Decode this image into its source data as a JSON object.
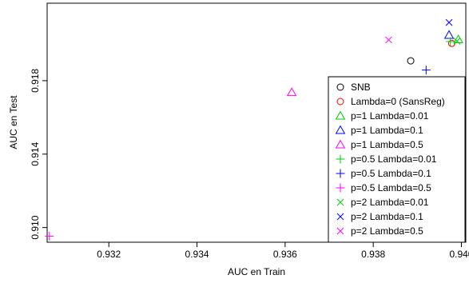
{
  "chart_data": {
    "type": "scatter",
    "xlabel": "AUC en Train",
    "ylabel": "AUC en Test",
    "xlim": [
      0.9306,
      0.9401
    ],
    "ylim": [
      0.9092,
      0.92222
    ],
    "xticks": [
      0.932,
      0.934,
      0.936,
      0.938,
      0.94
    ],
    "xtick_labels": [
      "0.932",
      "0.934",
      "0.936",
      "0.938",
      "0.940"
    ],
    "yticks": [
      0.91,
      0.914,
      0.918
    ],
    "ytick_labels": [
      "0.910",
      "0.914",
      "0.918"
    ],
    "grid": false,
    "legend_position": "bottom-right",
    "series": [
      {
        "name": "SNB",
        "marker": "circle",
        "color": "#000000",
        "points": [
          [
            0.93885,
            0.91908
          ]
        ]
      },
      {
        "name": "Lambda=0 (SansReg)",
        "marker": "circle",
        "color": "#ff0000",
        "points": [
          [
            0.93978,
            0.92003
          ]
        ]
      },
      {
        "name": "p=1 Lambda=0.01",
        "marker": "triangle",
        "color": "#00cd00",
        "points": [
          [
            0.93993,
            0.92024
          ]
        ]
      },
      {
        "name": "p=1 Lambda=0.1",
        "marker": "triangle",
        "color": "#0000ff",
        "points": [
          [
            0.93972,
            0.92048
          ]
        ]
      },
      {
        "name": "p=1 Lambda=0.5",
        "marker": "triangle",
        "color": "#ff00ff",
        "points": [
          [
            0.93615,
            0.91736
          ]
        ]
      },
      {
        "name": "p=0.5 Lambda=0.01",
        "marker": "plus",
        "color": "#00cd00",
        "points": [
          [
            0.93975,
            0.92013
          ]
        ]
      },
      {
        "name": "p=0.5 Lambda=0.1",
        "marker": "plus",
        "color": "#0000ff",
        "points": [
          [
            0.9392,
            0.91858
          ]
        ]
      },
      {
        "name": "p=0.5 Lambda=0.5",
        "marker": "plus",
        "color": "#ff00ff",
        "points": [
          [
            0.93065,
            0.90953
          ]
        ]
      },
      {
        "name": "p=2 Lambda=0.01",
        "marker": "x",
        "color": "#00cd00",
        "points": [
          [
            0.9399,
            0.92015
          ]
        ]
      },
      {
        "name": "p=2 Lambda=0.1",
        "marker": "x",
        "color": "#0000ff",
        "points": [
          [
            0.93972,
            0.92117
          ]
        ]
      },
      {
        "name": "p=2 Lambda=0.5",
        "marker": "x",
        "color": "#ff00ff",
        "points": [
          [
            0.93835,
            0.92022
          ]
        ]
      }
    ]
  }
}
